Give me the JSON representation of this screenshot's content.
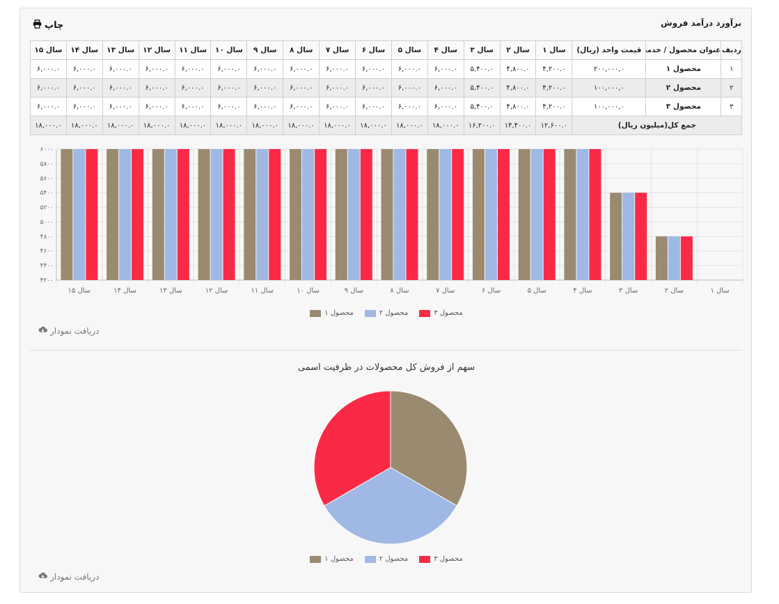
{
  "panel": {
    "title": "برآورد درآمد فروش",
    "print_label": "چاپ"
  },
  "table": {
    "headers": [
      "ردیف",
      "عنوان محصول / خدمت",
      "قیمت واحد (ریال)",
      "سال ۱",
      "سال ۲",
      "سال ۳",
      "سال ۴",
      "سال ۵",
      "سال ۶",
      "سال ۷",
      "سال ۸",
      "سال ۹",
      "سال ۱۰",
      "سال ۱۱",
      "سال ۱۲",
      "سال ۱۳",
      "سال ۱۴",
      "سال ۱۵"
    ],
    "rows": [
      {
        "idx": "۱",
        "name": "محصول ۱",
        "price": "۲۰۰,۰۰۰,۰",
        "years": [
          "۴,۲۰۰.۰",
          "۴,۸۰۰.۰",
          "۵,۴۰۰.۰",
          "۶,۰۰۰.۰",
          "۶,۰۰۰.۰",
          "۶,۰۰۰.۰",
          "۶,۰۰۰.۰",
          "۶,۰۰۰.۰",
          "۶,۰۰۰.۰",
          "۶,۰۰۰.۰",
          "۶,۰۰۰.۰",
          "۶,۰۰۰.۰",
          "۶,۰۰۰.۰",
          "۶,۰۰۰.۰",
          "۶,۰۰۰.۰"
        ]
      },
      {
        "idx": "۲",
        "name": "محصول ۲",
        "price": "۱۰۰,۰۰۰,۰",
        "years": [
          "۴,۲۰۰.۰",
          "۴,۸۰۰.۰",
          "۵,۴۰۰.۰",
          "۶,۰۰۰.۰",
          "۶,۰۰۰.۰",
          "۶,۰۰۰.۰",
          "۶,۰۰۰.۰",
          "۶,۰۰۰.۰",
          "۶,۰۰۰.۰",
          "۶,۰۰۰.۰",
          "۶,۰۰۰.۰",
          "۶,۰۰۰.۰",
          "۶,۰۰۰.۰",
          "۶,۰۰۰.۰",
          "۶,۰۰۰.۰"
        ]
      },
      {
        "idx": "۳",
        "name": "محصول ۳",
        "price": "۱۰۰,۰۰۰,۰",
        "years": [
          "۴,۲۰۰.۰",
          "۴,۸۰۰.۰",
          "۵,۴۰۰.۰",
          "۶,۰۰۰.۰",
          "۶,۰۰۰.۰",
          "۶,۰۰۰.۰",
          "۶,۰۰۰.۰",
          "۶,۰۰۰.۰",
          "۶,۰۰۰.۰",
          "۶,۰۰۰.۰",
          "۶,۰۰۰.۰",
          "۶,۰۰۰.۰",
          "۶,۰۰۰.۰",
          "۶,۰۰۰.۰",
          "۶,۰۰۰.۰"
        ]
      }
    ],
    "total": {
      "label": "جمع کل(میلیون ریال)",
      "years": [
        "۱۲,۶۰۰.۰",
        "۱۴,۴۰۰.۰",
        "۱۶,۲۰۰.۰",
        "۱۸,۰۰۰.۰",
        "۱۸,۰۰۰.۰",
        "۱۸,۰۰۰.۰",
        "۱۸,۰۰۰.۰",
        "۱۸,۰۰۰.۰",
        "۱۸,۰۰۰.۰",
        "۱۸,۰۰۰.۰",
        "۱۸,۰۰۰.۰",
        "۱۸,۰۰۰.۰",
        "۱۸,۰۰۰.۰",
        "۱۸,۰۰۰.۰",
        "۱۸,۰۰۰.۰"
      ]
    }
  },
  "download_label": "دریافت نمودار",
  "chart_data": [
    {
      "type": "bar",
      "categories": [
        "سال ۱",
        "سال ۲",
        "سال ۳",
        "سال ۴",
        "سال ۵",
        "سال ۶",
        "سال ۷",
        "سال ۸",
        "سال ۹",
        "سال ۱۰",
        "سال ۱۱",
        "سال ۱۲",
        "سال ۱۳",
        "سال ۱۴",
        "سال ۱۵"
      ],
      "category_order": "right-to-left",
      "series": [
        {
          "name": "محصول ۱",
          "color": "#9a8a70",
          "values": [
            4200,
            4800,
            5400,
            6000,
            6000,
            6000,
            6000,
            6000,
            6000,
            6000,
            6000,
            6000,
            6000,
            6000,
            6000
          ]
        },
        {
          "name": "محصول ۲",
          "color": "#a0b8e4",
          "values": [
            4200,
            4800,
            5400,
            6000,
            6000,
            6000,
            6000,
            6000,
            6000,
            6000,
            6000,
            6000,
            6000,
            6000,
            6000
          ]
        },
        {
          "name": "محصول ۳",
          "color": "#fa2a46",
          "values": [
            4200,
            4800,
            5400,
            6000,
            6000,
            6000,
            6000,
            6000,
            6000,
            6000,
            6000,
            6000,
            6000,
            6000,
            6000
          ]
        }
      ],
      "ylim": [
        4200,
        6000
      ],
      "yticks": [
        4200,
        4400,
        4600,
        4800,
        5000,
        5200,
        5400,
        5600,
        5800,
        6000
      ],
      "ytick_labels": [
        "۴۲۰۰",
        "۴۴۰۰",
        "۴۶۰۰",
        "۴۸۰۰",
        "۵۰۰۰",
        "۵۲۰۰",
        "۵۴۰۰",
        "۵۶۰۰",
        "۵۸۰۰",
        "۶۰۰۰"
      ],
      "grid": true,
      "legend": "bottom"
    },
    {
      "type": "pie",
      "title": "سهم از فروش کل محصولات در ظرفیت اسمی",
      "labels": [
        "محصول ۱",
        "محصول ۲",
        "محصول ۳"
      ],
      "values": [
        6000,
        6000,
        6000
      ],
      "colors": [
        "#9a8a70",
        "#a0b8e4",
        "#fa2a46"
      ],
      "legend": "bottom"
    }
  ]
}
